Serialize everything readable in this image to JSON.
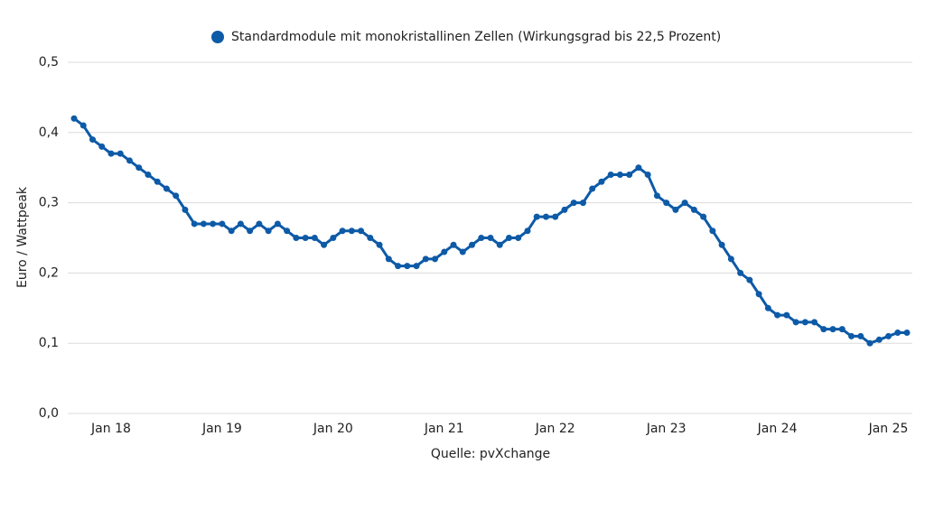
{
  "chart_data": {
    "type": "line",
    "ylabel": "Euro / Wattpeak",
    "source": "Quelle: pvXchange",
    "categories": [
      null,
      null,
      null,
      null,
      "Jan 18",
      null,
      null,
      null,
      null,
      null,
      null,
      null,
      null,
      null,
      null,
      null,
      "Jan 19",
      null,
      null,
      null,
      null,
      null,
      null,
      null,
      null,
      null,
      null,
      null,
      "Jan 20",
      null,
      null,
      null,
      null,
      null,
      null,
      null,
      null,
      null,
      null,
      null,
      "Jan 21",
      null,
      null,
      null,
      null,
      null,
      null,
      null,
      null,
      null,
      null,
      null,
      "Jan 22",
      null,
      null,
      null,
      null,
      null,
      null,
      null,
      null,
      null,
      null,
      null,
      "Jan 23",
      null,
      null,
      null,
      null,
      null,
      null,
      null,
      null,
      null,
      null,
      null,
      "Jan 24",
      null,
      null,
      null,
      null,
      null,
      null,
      null,
      null,
      null,
      null,
      null,
      "Jan 25",
      null,
      null
    ],
    "series": [
      {
        "name": "Standardmodule mit monokristallinen Zellen (Wirkungsgrad bis 22,5 Prozent)",
        "color": "#0d5aa7",
        "values": [
          0.42,
          0.41,
          0.39,
          0.38,
          0.37,
          0.37,
          0.36,
          0.35,
          0.34,
          0.33,
          0.32,
          0.31,
          0.29,
          0.27,
          0.27,
          0.27,
          0.27,
          0.26,
          0.27,
          0.26,
          0.27,
          0.26,
          0.27,
          0.26,
          0.25,
          0.25,
          0.25,
          0.24,
          0.25,
          0.26,
          0.26,
          0.26,
          0.25,
          0.24,
          0.22,
          0.21,
          0.21,
          0.21,
          0.22,
          0.22,
          0.23,
          0.24,
          0.23,
          0.24,
          0.25,
          0.25,
          0.24,
          0.25,
          0.25,
          0.26,
          0.28,
          0.28,
          0.28,
          0.29,
          0.3,
          0.3,
          0.32,
          0.33,
          0.34,
          0.34,
          0.34,
          0.35,
          0.34,
          0.31,
          0.3,
          0.29,
          0.3,
          0.29,
          0.28,
          0.26,
          0.24,
          0.22,
          0.2,
          0.19,
          0.17,
          0.15,
          0.14,
          0.14,
          0.13,
          0.13,
          0.13,
          0.12,
          0.12,
          0.12,
          0.11,
          0.11,
          0.1,
          0.105,
          0.11,
          0.115,
          0.115
        ]
      }
    ],
    "ylim": [
      0,
      0.5
    ],
    "yticks": [
      {
        "value": 0,
        "label": "0,0"
      },
      {
        "value": 0.1,
        "label": "0,1"
      },
      {
        "value": 0.2,
        "label": "0,2"
      },
      {
        "value": 0.3,
        "label": "0,3"
      },
      {
        "value": 0.4,
        "label": "0,4"
      },
      {
        "value": 0.5,
        "label": "0,5"
      }
    ],
    "grid": true
  }
}
